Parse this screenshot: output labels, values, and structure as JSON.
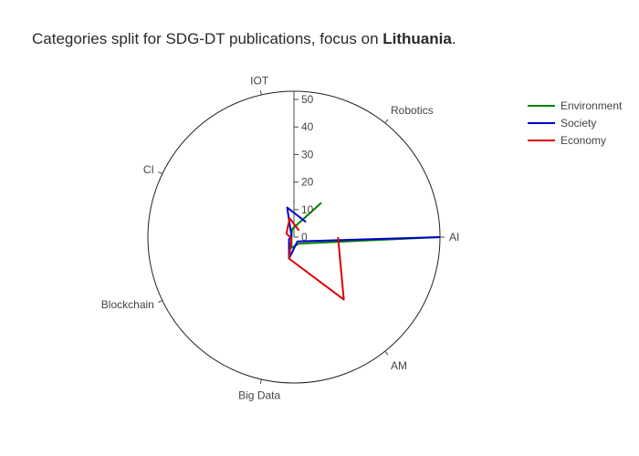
{
  "title": {
    "prefix": "Categories split for SDG-DT publications, focus on ",
    "bold": "Lithuania",
    "suffix": "."
  },
  "chart_data": {
    "type": "radar",
    "categories": [
      "AI",
      "AM",
      "Big Data",
      "Blockchain",
      "CI",
      "IOT",
      "Robotics"
    ],
    "radial_range": [
      0,
      53
    ],
    "radial_ticks": [
      0,
      10,
      20,
      30,
      40,
      50
    ],
    "series": [
      {
        "name": "Environment",
        "color": "#008000",
        "values": [
          53,
          3,
          4,
          1,
          1,
          3,
          16
        ]
      },
      {
        "name": "Society",
        "color": "#0000cc",
        "values": [
          53,
          2,
          8,
          2,
          1,
          11,
          7
        ]
      },
      {
        "name": "Economy",
        "color": "#dd0000",
        "values": [
          16,
          29,
          8,
          1,
          3,
          7,
          3
        ]
      }
    ],
    "legend_position": "top-right"
  }
}
